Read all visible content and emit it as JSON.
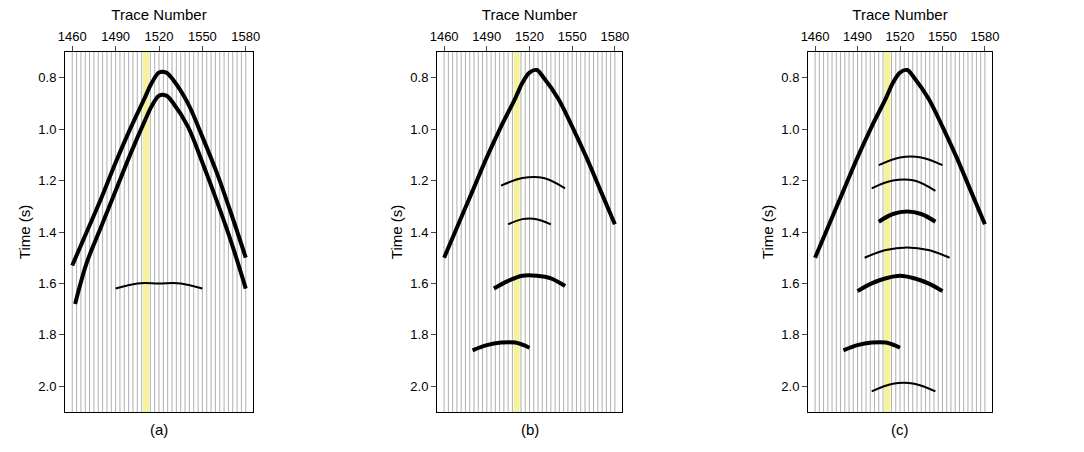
{
  "chart_data": [
    {
      "type": "line",
      "label": "(a)",
      "xlabel": "Trace Number",
      "ylabel": "Time (s)",
      "xlim": [
        1455,
        1585
      ],
      "xticks": [
        1460,
        1490,
        1520,
        1550,
        1580
      ],
      "ylim": [
        2.1,
        0.7
      ],
      "yticks": [
        0.8,
        {
          "value": 1,
          "label": "1.0"
        },
        1.2,
        1.4,
        1.6,
        1.8,
        {
          "value": 2,
          "label": "2.0"
        }
      ],
      "traces": [
        1460,
        1463,
        1466,
        1469,
        1472,
        1475,
        1478,
        1481,
        1484,
        1487,
        1490,
        1493,
        1496,
        1499,
        1502,
        1505,
        1508,
        1511,
        1514,
        1517,
        1520,
        1523,
        1526,
        1529,
        1532,
        1535,
        1538,
        1541,
        1544,
        1547,
        1550,
        1553,
        1556,
        1559,
        1562,
        1565,
        1568,
        1571,
        1574,
        1577,
        1580
      ],
      "series": [
        {
          "color": "#f7f29a",
          "line_style": "highlight",
          "x": [
            1511,
            1511
          ],
          "values": [
            2.1,
            0.7
          ]
        },
        {
          "color": "#000000",
          "line_style": "thick",
          "x": [
            1460,
            1470,
            1480,
            1490,
            1500,
            1510,
            1515,
            1520,
            1525,
            1530,
            1540,
            1550,
            1560,
            1570,
            1580
          ],
          "values": [
            1.53,
            1.4,
            1.27,
            1.13,
            1.0,
            0.88,
            0.82,
            0.78,
            0.78,
            0.81,
            0.9,
            1.03,
            1.17,
            1.33,
            1.5
          ]
        },
        {
          "color": "#000000",
          "line_style": "thick",
          "x": [
            1462,
            1470,
            1480,
            1490,
            1500,
            1510,
            1515,
            1520,
            1525,
            1530,
            1540,
            1550,
            1560,
            1570,
            1580
          ],
          "values": [
            1.68,
            1.52,
            1.38,
            1.24,
            1.1,
            0.97,
            0.91,
            0.87,
            0.87,
            0.9,
            0.99,
            1.13,
            1.28,
            1.44,
            1.62
          ]
        },
        {
          "color": "#000000",
          "line_style": "solid",
          "x": [
            1490,
            1505,
            1520,
            1535,
            1550
          ],
          "values": [
            1.62,
            1.6,
            1.6,
            1.6,
            1.62
          ]
        }
      ]
    },
    {
      "type": "line",
      "label": "(b)",
      "xlabel": "Trace Number",
      "ylabel": "Time (s)",
      "xlim": [
        1455,
        1585
      ],
      "xticks": [
        1460,
        1490,
        1520,
        1550,
        1580
      ],
      "ylim": [
        2.1,
        0.7
      ],
      "yticks": [
        0.8,
        {
          "value": 1,
          "label": "1.0"
        },
        1.2,
        1.4,
        1.6,
        1.8,
        {
          "value": 2,
          "label": "2.0"
        }
      ],
      "traces": [
        1460,
        1463,
        1466,
        1469,
        1472,
        1475,
        1478,
        1481,
        1484,
        1487,
        1490,
        1493,
        1496,
        1499,
        1502,
        1505,
        1508,
        1511,
        1514,
        1517,
        1520,
        1523,
        1526,
        1529,
        1532,
        1535,
        1538,
        1541,
        1544,
        1547,
        1550,
        1553,
        1556,
        1559,
        1562,
        1565,
        1568,
        1571,
        1574,
        1577,
        1580
      ],
      "series": [
        {
          "color": "#f7f29a",
          "line_style": "highlight",
          "x": [
            1511,
            1511
          ],
          "values": [
            2.1,
            0.7
          ]
        },
        {
          "color": "#000000",
          "line_style": "thick",
          "x": [
            1460,
            1470,
            1480,
            1490,
            1500,
            1510,
            1515,
            1520,
            1525,
            1530,
            1540,
            1550,
            1560,
            1570,
            1580
          ],
          "values": [
            1.5,
            1.37,
            1.24,
            1.11,
            0.99,
            0.88,
            0.82,
            0.78,
            0.77,
            0.8,
            0.88,
            0.99,
            1.11,
            1.24,
            1.37
          ]
        },
        {
          "color": "#000000",
          "line_style": "solid",
          "x": [
            1500,
            1515,
            1530,
            1545
          ],
          "values": [
            1.22,
            1.19,
            1.19,
            1.23
          ]
        },
        {
          "color": "#000000",
          "line_style": "solid",
          "x": [
            1505,
            1515,
            1525,
            1535
          ],
          "values": [
            1.37,
            1.35,
            1.35,
            1.37
          ]
        },
        {
          "color": "#000000",
          "line_style": "thick",
          "x": [
            1495,
            1505,
            1515,
            1525,
            1535,
            1545
          ],
          "values": [
            1.62,
            1.59,
            1.57,
            1.57,
            1.58,
            1.61
          ]
        },
        {
          "color": "#000000",
          "line_style": "thick",
          "x": [
            1480,
            1490,
            1500,
            1510,
            1520
          ],
          "values": [
            1.86,
            1.84,
            1.83,
            1.83,
            1.85
          ]
        }
      ]
    },
    {
      "type": "line",
      "label": "(c)",
      "xlabel": "Trace Number",
      "ylabel": "Time (s)",
      "xlim": [
        1455,
        1585
      ],
      "xticks": [
        1460,
        1490,
        1520,
        1550,
        1580
      ],
      "ylim": [
        2.1,
        0.7
      ],
      "yticks": [
        0.8,
        {
          "value": 1,
          "label": "1.0"
        },
        1.2,
        1.4,
        1.6,
        1.8,
        {
          "value": 2,
          "label": "2.0"
        }
      ],
      "traces": [
        1460,
        1463,
        1466,
        1469,
        1472,
        1475,
        1478,
        1481,
        1484,
        1487,
        1490,
        1493,
        1496,
        1499,
        1502,
        1505,
        1508,
        1511,
        1514,
        1517,
        1520,
        1523,
        1526,
        1529,
        1532,
        1535,
        1538,
        1541,
        1544,
        1547,
        1550,
        1553,
        1556,
        1559,
        1562,
        1565,
        1568,
        1571,
        1574,
        1577,
        1580
      ],
      "series": [
        {
          "color": "#f7f29a",
          "line_style": "highlight",
          "x": [
            1511,
            1511
          ],
          "values": [
            2.1,
            0.7
          ]
        },
        {
          "color": "#000000",
          "line_style": "thick",
          "x": [
            1460,
            1470,
            1480,
            1490,
            1500,
            1510,
            1515,
            1520,
            1525,
            1530,
            1540,
            1550,
            1560,
            1570,
            1580
          ],
          "values": [
            1.5,
            1.37,
            1.24,
            1.11,
            0.99,
            0.88,
            0.82,
            0.78,
            0.77,
            0.8,
            0.88,
            0.99,
            1.11,
            1.24,
            1.37
          ]
        },
        {
          "color": "#000000",
          "line_style": "solid",
          "x": [
            1505,
            1520,
            1535,
            1550
          ],
          "values": [
            1.14,
            1.11,
            1.11,
            1.14
          ]
        },
        {
          "color": "#000000",
          "line_style": "solid",
          "x": [
            1500,
            1515,
            1530,
            1545
          ],
          "values": [
            1.23,
            1.2,
            1.2,
            1.24
          ]
        },
        {
          "color": "#000000",
          "line_style": "thick",
          "x": [
            1505,
            1515,
            1525,
            1535,
            1545
          ],
          "values": [
            1.36,
            1.33,
            1.32,
            1.33,
            1.36
          ]
        },
        {
          "color": "#000000",
          "line_style": "solid",
          "x": [
            1495,
            1510,
            1525,
            1540,
            1555
          ],
          "values": [
            1.5,
            1.47,
            1.46,
            1.47,
            1.5
          ]
        },
        {
          "color": "#000000",
          "line_style": "thick",
          "x": [
            1490,
            1500,
            1510,
            1520,
            1530,
            1540,
            1550
          ],
          "values": [
            1.63,
            1.6,
            1.58,
            1.57,
            1.58,
            1.6,
            1.63
          ]
        },
        {
          "color": "#000000",
          "line_style": "thick",
          "x": [
            1480,
            1490,
            1500,
            1510,
            1520
          ],
          "values": [
            1.86,
            1.84,
            1.83,
            1.83,
            1.85
          ]
        },
        {
          "color": "#000000",
          "line_style": "solid",
          "x": [
            1500,
            1515,
            1530,
            1545
          ],
          "values": [
            2.02,
            1.99,
            1.99,
            2.02
          ]
        }
      ]
    }
  ]
}
